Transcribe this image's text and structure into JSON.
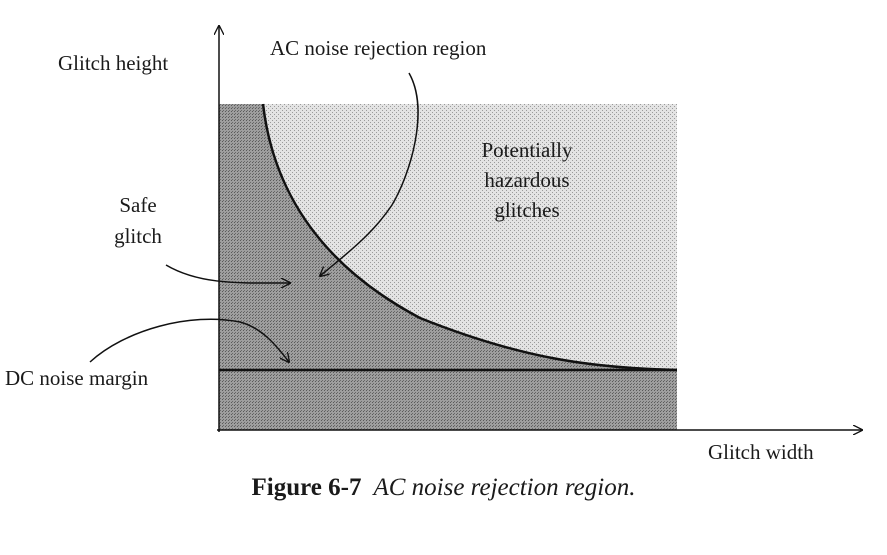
{
  "diagram": {
    "axes": {
      "y_label": "Glitch height",
      "x_label": "Glitch width"
    },
    "regions": {
      "ac_noise_rejection": "AC noise rejection region",
      "hazardous": [
        "Potentially",
        "hazardous",
        "glitches"
      ],
      "safe_glitch": [
        "Safe",
        "glitch"
      ],
      "dc_noise_margin": "DC noise margin"
    },
    "colors": {
      "safe_region_fill": "#8c8c8c",
      "hazardous_region_fill": "#dcdcdc",
      "lines": "#111111"
    }
  },
  "caption": {
    "number": "Figure 6-7",
    "title": "AC noise rejection region."
  }
}
